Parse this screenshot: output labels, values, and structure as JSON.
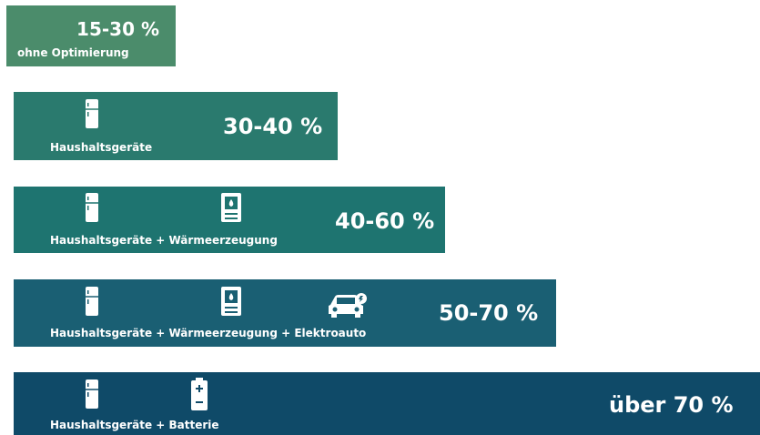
{
  "rows": [
    {
      "range": "15-30 %",
      "caption": "ohne Optimierung"
    },
    {
      "range": "30-40 %",
      "caption": "Haushaltsgeräte"
    },
    {
      "range": "40-60 %",
      "caption": "Haushaltsgeräte + Wärmeerzeugung"
    },
    {
      "range": "50-70 %",
      "caption": "Haushaltsgeräte + Wärmeerzeugung + Elektroauto"
    },
    {
      "range": "über 70 %",
      "caption": "Haushaltsgeräte + Batterie"
    }
  ]
}
